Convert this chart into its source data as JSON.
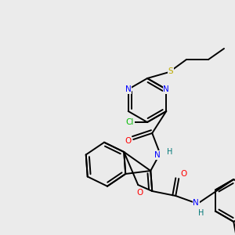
{
  "background_color": "#ebebeb",
  "atom_colors": {
    "N": "#0000ff",
    "O": "#ff0000",
    "Cl": "#00bb00",
    "S": "#bbaa00",
    "H": "#007777",
    "C": "#000000"
  },
  "lw": 1.4
}
